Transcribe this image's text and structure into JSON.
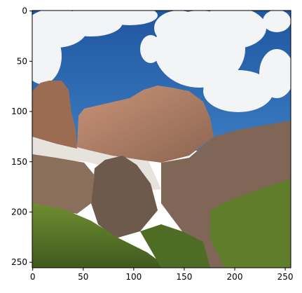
{
  "image_plot": {
    "content": "alpine mountain landscape: cloudy blue sky, rocky peaks, green slopes",
    "x_ticks": [
      "0",
      "50",
      "100",
      "150",
      "200",
      "250"
    ],
    "y_ticks": [
      "0",
      "50",
      "100",
      "150",
      "200",
      "250"
    ],
    "x_tick_values": [
      0,
      50,
      100,
      150,
      200,
      250
    ],
    "y_tick_values": [
      0,
      50,
      100,
      150,
      200,
      250
    ],
    "xlim": [
      -0.5,
      255.5
    ],
    "ylim": [
      255.5,
      -0.5
    ],
    "colors": {
      "sky": "#2f6cb0",
      "sky_deep": "#1f56a0",
      "cloud": "#f2f4f6",
      "rock_light": "#b98568",
      "rock_dark": "#7f5a46",
      "snow": "#e6e2dc",
      "grass": "#5f7d2a",
      "grass_dark": "#3f5a1e",
      "shadow_rock": "#6e5a4c"
    }
  }
}
